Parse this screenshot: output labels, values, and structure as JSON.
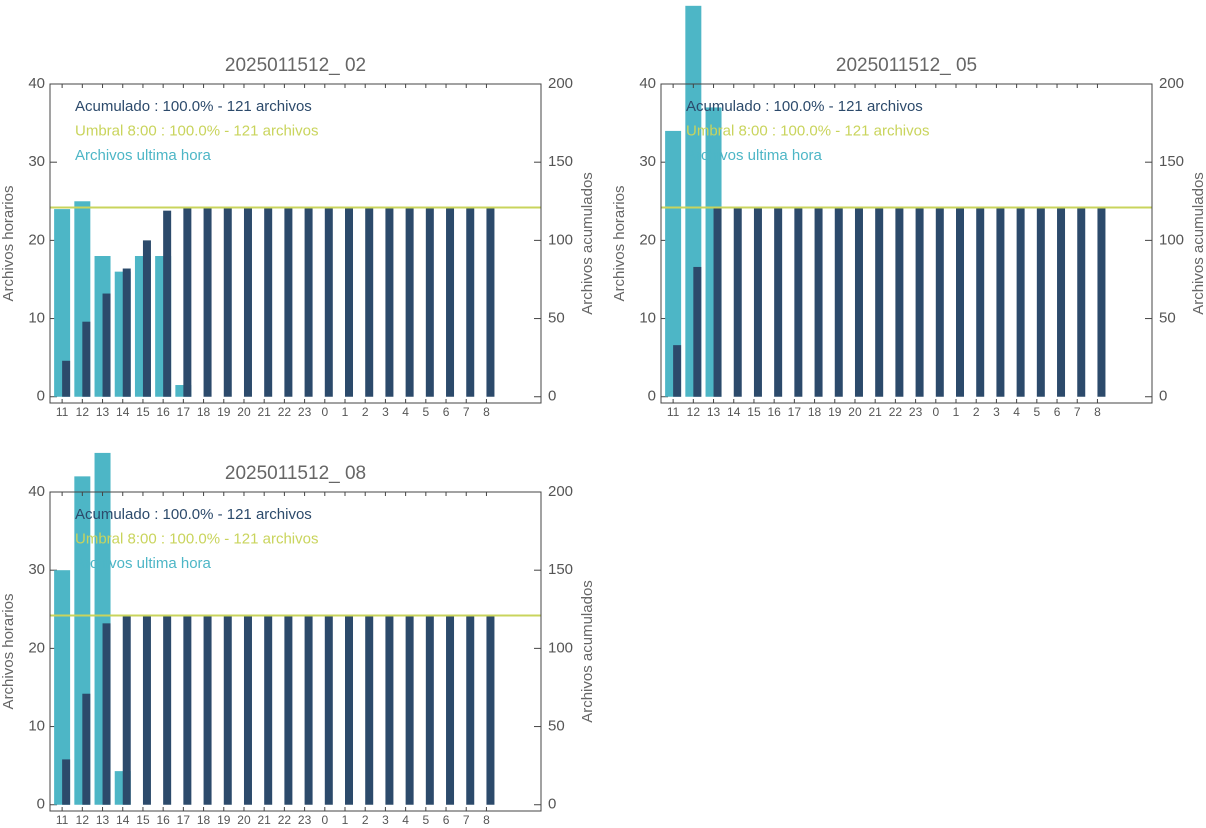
{
  "chart_data": [
    {
      "type": "bar",
      "title": "2025011512_ 02",
      "categories": [
        "11",
        "12",
        "13",
        "14",
        "15",
        "16",
        "17",
        "18",
        "19",
        "20",
        "21",
        "22",
        "23",
        "0",
        "1",
        "2",
        "3",
        "4",
        "5",
        "6",
        "7",
        "8"
      ],
      "series": [
        {
          "name": "Archivos ultima hora",
          "color": "#4db6c6",
          "values": [
            24,
            25,
            18,
            16,
            18,
            18,
            1.5,
            0,
            0,
            0,
            0,
            0,
            0,
            0,
            0,
            0,
            0,
            0,
            0,
            0,
            0,
            0
          ]
        },
        {
          "name": "Acumulado : 100.0% - 121 archivos",
          "color": "#2c4a6b",
          "axis": "y2",
          "values": [
            23,
            48,
            66,
            82,
            100,
            119,
            121,
            121,
            121,
            121,
            121,
            121,
            121,
            121,
            121,
            121,
            121,
            121,
            121,
            121,
            121,
            121
          ]
        }
      ],
      "threshold": {
        "name": "Umbral 8:00 : 100.0% - 121 archivos",
        "color": "#c9d45c",
        "value": 121,
        "axis": "y2"
      },
      "ylabel": "Archivos horarios",
      "y2label": "Archivos acumulados",
      "ylim": [
        -0.8,
        40
      ],
      "yticks": [
        0,
        10,
        20,
        30,
        40
      ],
      "y2lim": [
        -4,
        200
      ],
      "y2ticks": [
        0,
        50,
        100,
        150,
        200
      ]
    },
    {
      "type": "bar",
      "title": "2025011512_ 05",
      "categories": [
        "11",
        "12",
        "13",
        "14",
        "15",
        "16",
        "17",
        "18",
        "19",
        "20",
        "21",
        "22",
        "23",
        "0",
        "1",
        "2",
        "3",
        "4",
        "5",
        "6",
        "7",
        "8"
      ],
      "series": [
        {
          "name": "Archivos ultima hora",
          "color": "#4db6c6",
          "values": [
            34,
            50,
            37,
            0,
            0,
            0,
            0,
            0,
            0,
            0,
            0,
            0,
            0,
            0,
            0,
            0,
            0,
            0,
            0,
            0,
            0,
            0
          ]
        },
        {
          "name": "Acumulado : 100.0% - 121 archivos",
          "color": "#2c4a6b",
          "axis": "y2",
          "values": [
            33,
            83,
            121,
            121,
            121,
            121,
            121,
            121,
            121,
            121,
            121,
            121,
            121,
            121,
            121,
            121,
            121,
            121,
            121,
            121,
            121,
            121
          ]
        }
      ],
      "threshold": {
        "name": "Umbral 8:00 : 100.0% - 121 archivos",
        "color": "#c9d45c",
        "value": 121,
        "axis": "y2"
      },
      "ylabel": "Archivos horarios",
      "y2label": "Archivos acumulados",
      "ylim": [
        -0.8,
        40
      ],
      "yticks": [
        0,
        10,
        20,
        30,
        40
      ],
      "y2lim": [
        -4,
        200
      ],
      "y2ticks": [
        0,
        50,
        100,
        150,
        200
      ]
    },
    {
      "type": "bar",
      "title": "2025011512_ 08",
      "categories": [
        "11",
        "12",
        "13",
        "14",
        "15",
        "16",
        "17",
        "18",
        "19",
        "20",
        "21",
        "22",
        "23",
        "0",
        "1",
        "2",
        "3",
        "4",
        "5",
        "6",
        "7",
        "8"
      ],
      "series": [
        {
          "name": "Archivos ultima hora",
          "color": "#4db6c6",
          "values": [
            30,
            42,
            45,
            4.3,
            0,
            0,
            0,
            0,
            0,
            0,
            0,
            0,
            0,
            0,
            0,
            0,
            0,
            0,
            0,
            0,
            0,
            0
          ]
        },
        {
          "name": "Acumulado : 100.0% - 121 archivos",
          "color": "#2c4a6b",
          "axis": "y2",
          "values": [
            29,
            71,
            116,
            121,
            121,
            121,
            121,
            121,
            121,
            121,
            121,
            121,
            121,
            121,
            121,
            121,
            121,
            121,
            121,
            121,
            121,
            121
          ]
        }
      ],
      "threshold": {
        "name": "Umbral 8:00 : 100.0% - 121 archivos",
        "color": "#c9d45c",
        "value": 121,
        "axis": "y2"
      },
      "ylabel": "Archivos horarios",
      "y2label": "Archivos acumulados",
      "ylim": [
        -0.8,
        40
      ],
      "yticks": [
        0,
        10,
        20,
        30,
        40
      ],
      "y2lim": [
        -4,
        200
      ],
      "y2ticks": [
        0,
        50,
        100,
        150,
        200
      ]
    }
  ]
}
